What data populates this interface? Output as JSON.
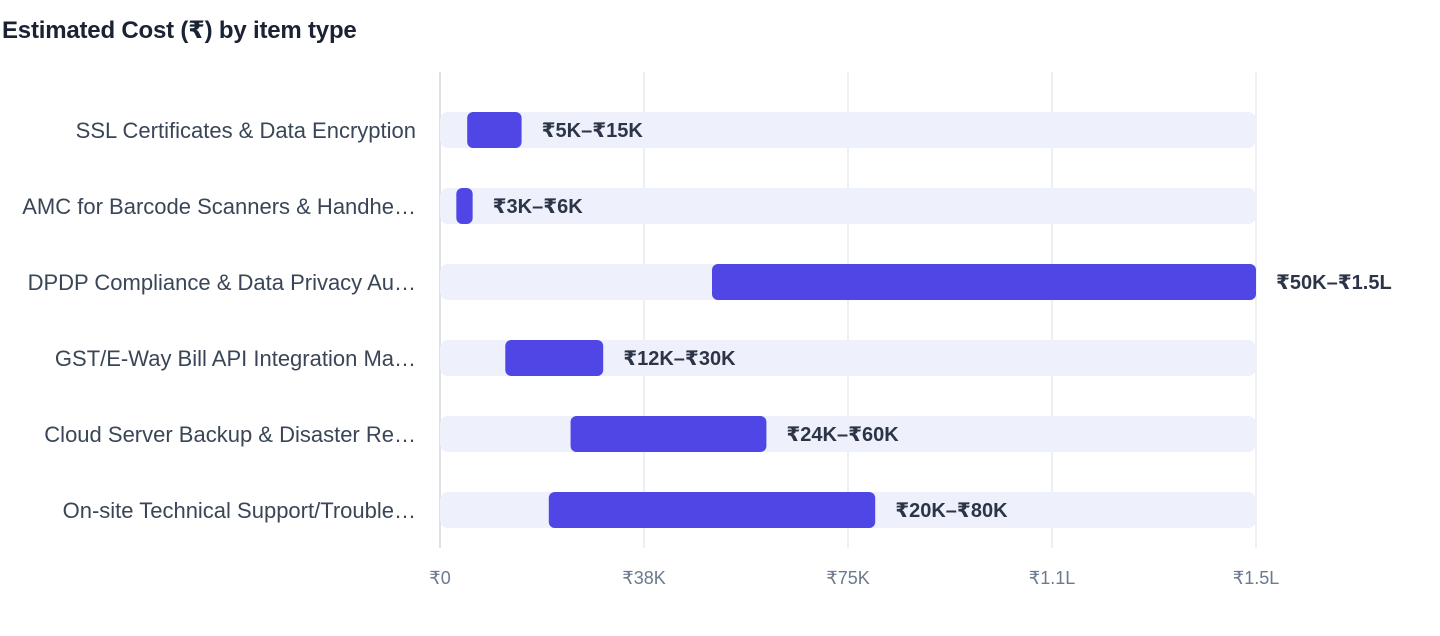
{
  "chart_data": {
    "type": "bar",
    "orientation": "horizontal",
    "subtype": "range",
    "title": "Estimated Cost (₹) by item type",
    "xlabel": "",
    "ylabel": "",
    "xlim": [
      0,
      150000
    ],
    "x_ticks": [
      {
        "value": 0,
        "label": "₹0"
      },
      {
        "value": 37500,
        "label": "₹38K"
      },
      {
        "value": 75000,
        "label": "₹75K"
      },
      {
        "value": 112500,
        "label": "₹1.1L"
      },
      {
        "value": 150000,
        "label": "₹1.5L"
      }
    ],
    "grid": true,
    "legend": "none",
    "categories": [
      "SSL Certificates & Data Encryption",
      "AMC for Barcode Scanners & Handhe…",
      "DPDP Compliance & Data Privacy Au…",
      "GST/E-Way Bill API Integration Ma…",
      "Cloud Server Backup & Disaster Re…",
      "On-site Technical Support/Trouble…"
    ],
    "ranges": [
      {
        "min": 5000,
        "max": 15000,
        "label": "₹5K–₹15K"
      },
      {
        "min": 3000,
        "max": 6000,
        "label": "₹3K–₹6K"
      },
      {
        "min": 50000,
        "max": 150000,
        "label": "₹50K–₹1.5L"
      },
      {
        "min": 12000,
        "max": 30000,
        "label": "₹12K–₹30K"
      },
      {
        "min": 24000,
        "max": 60000,
        "label": "₹24K–₹60K"
      },
      {
        "min": 20000,
        "max": 80000,
        "label": "₹20K–₹80K"
      }
    ],
    "colors": {
      "bar": "#4f46e5",
      "track": "#eef1fc",
      "grid": "#e3e6ec",
      "axis": "#d4d8e0"
    }
  }
}
